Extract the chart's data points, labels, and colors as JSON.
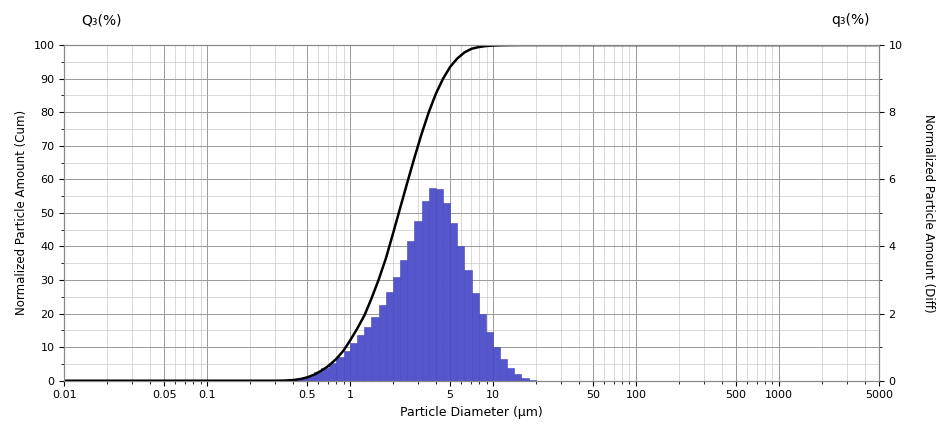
{
  "xlabel": "Particle Diameter (μm)",
  "ylabel_left": "Normalized Particle Amount (Cum)",
  "ylabel_right": "Normalized Particle Amount (Diff)",
  "left_label": "Q₃(%)",
  "right_label": "q₃(%)",
  "xlim_log": [
    0.01,
    5000
  ],
  "ylim_left": [
    0,
    100
  ],
  "ylim_right": [
    0,
    10
  ],
  "bar_color": "#5555cc",
  "bar_edge_color": "#4444bb",
  "cum_line_color": "#000000",
  "grid_major_color": "#999999",
  "grid_minor_color": "#bbbbbb",
  "bar_bins_log": [
    0.4,
    0.45,
    0.5,
    0.56,
    0.63,
    0.71,
    0.8,
    0.9,
    1.0,
    1.12,
    1.26,
    1.41,
    1.58,
    1.78,
    2.0,
    2.24,
    2.51,
    2.82,
    3.16,
    3.55,
    3.98,
    4.47,
    5.01,
    5.62,
    6.31,
    7.08,
    7.94,
    8.91,
    10.0,
    11.2,
    12.6,
    14.1,
    15.8,
    17.8,
    20.0
  ],
  "bar_heights": [
    0.3,
    0.8,
    1.5,
    2.5,
    3.8,
    5.2,
    7.0,
    9.0,
    11.2,
    13.5,
    16.0,
    19.0,
    22.5,
    26.5,
    31.0,
    36.0,
    41.5,
    47.5,
    53.5,
    57.5,
    57.0,
    53.0,
    47.0,
    40.0,
    33.0,
    26.0,
    20.0,
    14.5,
    10.0,
    6.5,
    3.8,
    2.0,
    0.9,
    0.3,
    0.1
  ],
  "cum_x": [
    0.01,
    0.1,
    0.2,
    0.3,
    0.35,
    0.4,
    0.45,
    0.5,
    0.56,
    0.63,
    0.71,
    0.8,
    0.9,
    1.0,
    1.12,
    1.26,
    1.41,
    1.58,
    1.78,
    2.0,
    2.24,
    2.51,
    2.82,
    3.16,
    3.55,
    3.98,
    4.47,
    5.01,
    5.62,
    6.31,
    7.08,
    7.94,
    8.91,
    10.0,
    11.2,
    12.6,
    14.1,
    15.8,
    20.0,
    30.0,
    50.0,
    100.0,
    500.0,
    5000.0
  ],
  "cum_y": [
    0.0,
    0.0,
    0.0,
    0.0,
    0.05,
    0.2,
    0.5,
    1.0,
    1.8,
    3.0,
    4.5,
    6.5,
    9.0,
    12.0,
    15.5,
    19.5,
    24.5,
    30.0,
    36.5,
    44.0,
    51.5,
    59.0,
    66.5,
    73.5,
    80.0,
    85.5,
    90.0,
    93.5,
    96.0,
    97.8,
    98.9,
    99.4,
    99.7,
    99.85,
    99.93,
    99.97,
    99.99,
    100.0,
    100.0,
    100.0,
    100.0,
    100.0,
    100.0,
    100.0
  ],
  "x_major_ticks": [
    0.01,
    0.05,
    0.1,
    0.5,
    1,
    5,
    10,
    50,
    100,
    500,
    1000,
    5000
  ],
  "x_major_labels": [
    "0.01",
    "0.05",
    "0.1",
    "0.5",
    "1",
    "5",
    "10",
    "50",
    "100",
    "500",
    "1000",
    "5000"
  ]
}
